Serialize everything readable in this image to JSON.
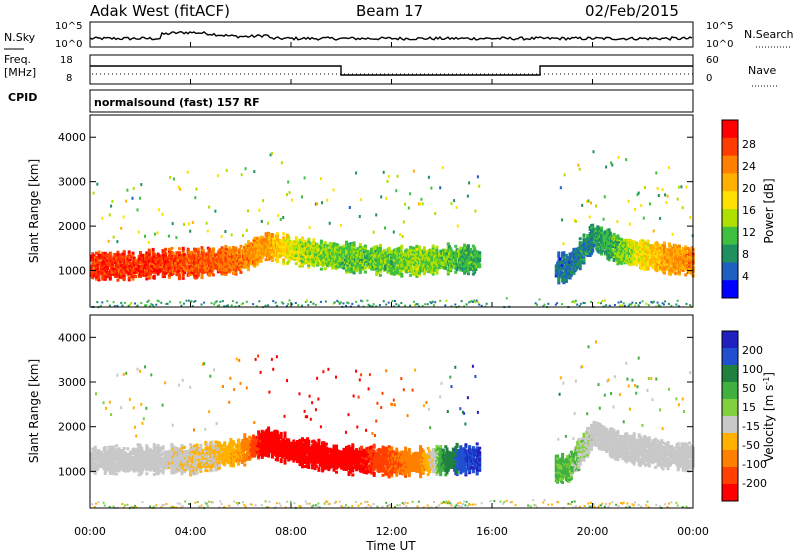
{
  "header": {
    "station": "Adak West (fitACF)",
    "beam": "Beam 17",
    "date": "02/Feb/2015"
  },
  "noise_panel": {
    "left_label": "N.Sky",
    "right_label": "N.Search",
    "ticks_left": [
      "10^5",
      "10^0"
    ],
    "ticks_right": [
      "10^5",
      "10^0"
    ]
  },
  "freq_panel": {
    "left_label_1": "Freq.",
    "left_label_2": "[MHz]",
    "ticks_left": [
      "18",
      "8"
    ],
    "right_label": "Nave",
    "ticks_right": [
      "60",
      "0"
    ]
  },
  "cpid": {
    "label": "CPID",
    "value": "normalsound (fast) 157 RF"
  },
  "axes": {
    "ylabel": "Slant Range [km]",
    "xlabel": "Time UT",
    "yticks": [
      "4000",
      "3000",
      "2000",
      "1000"
    ],
    "xticks": [
      "00:00",
      "04:00",
      "08:00",
      "12:00",
      "16:00",
      "20:00",
      "00:00"
    ]
  },
  "power_colorbar": {
    "title": "Power [dB]",
    "ticks": [
      "28",
      "24",
      "20",
      "16",
      "12",
      "8",
      "4"
    ],
    "colors": [
      "#ff0000",
      "#ff3c00",
      "#ff8000",
      "#ffb000",
      "#ffe000",
      "#b0e000",
      "#40c040",
      "#209060",
      "#1f5fbf",
      "#0000ff"
    ]
  },
  "velocity_colorbar": {
    "title": "Velocity [m s^-1]",
    "ticks": [
      "200",
      "100",
      "50",
      "15",
      "-15",
      "-50",
      "-100",
      "-200"
    ],
    "colors": [
      "#2020c0",
      "#2050d0",
      "#208040",
      "#40b040",
      "#80d040",
      "#c8c8c8",
      "#ffb000",
      "#ff8000",
      "#ff4000",
      "#ff0000"
    ]
  },
  "chart_data": [
    {
      "type": "heatmap",
      "name": "power",
      "x_hours": [
        0,
        1,
        2,
        3,
        4,
        5,
        6,
        7,
        8,
        9,
        10,
        11,
        12,
        13,
        14,
        15,
        16,
        17,
        18,
        19,
        20,
        21,
        22,
        23,
        24
      ],
      "band_center_km": [
        1150,
        1150,
        1150,
        1200,
        1200,
        1250,
        1300,
        1600,
        1500,
        1400,
        1350,
        1300,
        1250,
        1250,
        1300,
        1300,
        1300,
        null,
        null,
        1100,
        1800,
        1500,
        1400,
        1300,
        1250
      ],
      "band_power_db": [
        28,
        28,
        28,
        28,
        26,
        26,
        24,
        22,
        16,
        14,
        12,
        12,
        12,
        14,
        12,
        10,
        null,
        null,
        null,
        6,
        8,
        12,
        18,
        22,
        24
      ],
      "xlim": [
        0,
        24
      ],
      "ylim": [
        180,
        4500
      ]
    },
    {
      "type": "heatmap",
      "name": "velocity",
      "x_hours": [
        0,
        1,
        2,
        3,
        4,
        5,
        6,
        7,
        8,
        9,
        10,
        11,
        12,
        13,
        14,
        15,
        16,
        17,
        18,
        19,
        20,
        21,
        22,
        23,
        24
      ],
      "band_center_km": [
        1300,
        1300,
        1300,
        1300,
        1300,
        1400,
        1500,
        1700,
        1500,
        1400,
        1300,
        1300,
        1250,
        1250,
        1300,
        1300,
        1350,
        null,
        null,
        1100,
        1900,
        1600,
        1500,
        1400,
        1350
      ],
      "band_velocity_ms": [
        0,
        0,
        0,
        0,
        -10,
        -20,
        -50,
        -200,
        -200,
        -200,
        -200,
        -150,
        -100,
        -80,
        50,
        150,
        null,
        null,
        null,
        30,
        0,
        0,
        0,
        0,
        0
      ],
      "xlim": [
        0,
        24
      ],
      "ylim": [
        180,
        4500
      ]
    }
  ]
}
